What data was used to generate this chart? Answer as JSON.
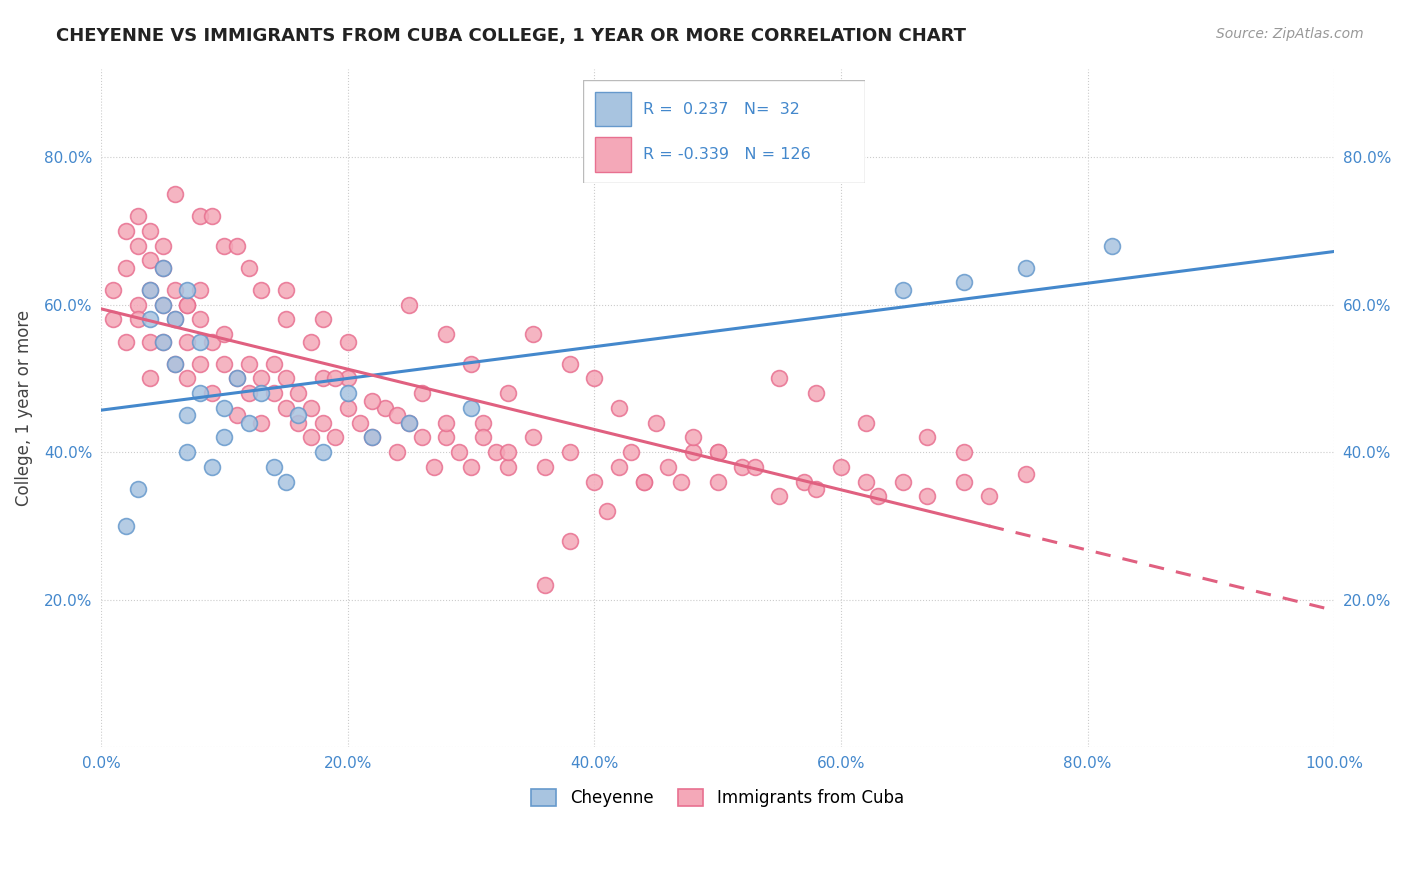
{
  "title": "CHEYENNE VS IMMIGRANTS FROM CUBA COLLEGE, 1 YEAR OR MORE CORRELATION CHART",
  "source": "Source: ZipAtlas.com",
  "ylabel": "College, 1 year or more",
  "xlim": [
    0.0,
    1.0
  ],
  "ylim": [
    0.0,
    0.92
  ],
  "yticks": [
    0.0,
    0.2,
    0.4,
    0.6,
    0.8
  ],
  "ytick_labels": [
    "",
    "20.0%",
    "40.0%",
    "60.0%",
    "80.0%"
  ],
  "xticks": [
    0.0,
    0.2,
    0.4,
    0.6,
    0.8,
    1.0
  ],
  "xtick_labels": [
    "0.0%",
    "20.0%",
    "40.0%",
    "60.0%",
    "80.0%",
    "100.0%"
  ],
  "cheyenne_color": "#a8c4e0",
  "cuba_color": "#f4a8b8",
  "cheyenne_edge": "#6699cc",
  "cuba_edge": "#e87090",
  "line_blue": "#4488cc",
  "line_pink": "#e06080",
  "R_cheyenne": 0.237,
  "N_cheyenne": 32,
  "R_cuba": -0.339,
  "N_cuba": 126,
  "legend_entries": [
    "Cheyenne",
    "Immigrants from Cuba"
  ],
  "background_color": "#ffffff",
  "grid_color": "#cccccc",
  "cheyenne_x": [
    0.02,
    0.03,
    0.04,
    0.04,
    0.05,
    0.05,
    0.05,
    0.06,
    0.06,
    0.07,
    0.07,
    0.07,
    0.08,
    0.08,
    0.09,
    0.1,
    0.1,
    0.11,
    0.12,
    0.13,
    0.14,
    0.15,
    0.16,
    0.18,
    0.2,
    0.22,
    0.25,
    0.3,
    0.65,
    0.7,
    0.75,
    0.82
  ],
  "cheyenne_y": [
    0.3,
    0.35,
    0.58,
    0.62,
    0.55,
    0.6,
    0.65,
    0.52,
    0.58,
    0.4,
    0.45,
    0.62,
    0.48,
    0.55,
    0.38,
    0.42,
    0.46,
    0.5,
    0.44,
    0.48,
    0.38,
    0.36,
    0.45,
    0.4,
    0.48,
    0.42,
    0.44,
    0.46,
    0.62,
    0.63,
    0.65,
    0.68
  ],
  "cuba_x": [
    0.01,
    0.01,
    0.02,
    0.02,
    0.02,
    0.03,
    0.03,
    0.03,
    0.03,
    0.04,
    0.04,
    0.04,
    0.04,
    0.05,
    0.05,
    0.05,
    0.06,
    0.06,
    0.06,
    0.07,
    0.07,
    0.07,
    0.08,
    0.08,
    0.08,
    0.09,
    0.09,
    0.1,
    0.1,
    0.11,
    0.11,
    0.12,
    0.12,
    0.13,
    0.13,
    0.14,
    0.14,
    0.15,
    0.15,
    0.16,
    0.16,
    0.17,
    0.17,
    0.18,
    0.18,
    0.19,
    0.2,
    0.2,
    0.21,
    0.22,
    0.23,
    0.24,
    0.25,
    0.26,
    0.27,
    0.28,
    0.29,
    0.3,
    0.31,
    0.32,
    0.33,
    0.35,
    0.36,
    0.38,
    0.4,
    0.42,
    0.43,
    0.44,
    0.46,
    0.47,
    0.48,
    0.5,
    0.52,
    0.55,
    0.57,
    0.58,
    0.6,
    0.62,
    0.63,
    0.65,
    0.67,
    0.7,
    0.72,
    0.75,
    0.55,
    0.58,
    0.62,
    0.67,
    0.7,
    0.35,
    0.38,
    0.4,
    0.42,
    0.45,
    0.48,
    0.5,
    0.53,
    0.25,
    0.28,
    0.3,
    0.33,
    0.12,
    0.15,
    0.18,
    0.2,
    0.08,
    0.1,
    0.06,
    0.04,
    0.05,
    0.07,
    0.09,
    0.11,
    0.13,
    0.15,
    0.17,
    0.19,
    0.22,
    0.24,
    0.26,
    0.28,
    0.31,
    0.33,
    0.36,
    0.38,
    0.41,
    0.44,
    0.5
  ],
  "cuba_y": [
    0.58,
    0.62,
    0.55,
    0.65,
    0.7,
    0.72,
    0.68,
    0.6,
    0.58,
    0.66,
    0.62,
    0.55,
    0.5,
    0.6,
    0.55,
    0.68,
    0.58,
    0.52,
    0.62,
    0.55,
    0.6,
    0.5,
    0.58,
    0.52,
    0.62,
    0.55,
    0.48,
    0.52,
    0.56,
    0.5,
    0.45,
    0.52,
    0.48,
    0.5,
    0.44,
    0.48,
    0.52,
    0.46,
    0.5,
    0.44,
    0.48,
    0.42,
    0.46,
    0.44,
    0.5,
    0.42,
    0.46,
    0.5,
    0.44,
    0.42,
    0.46,
    0.4,
    0.44,
    0.42,
    0.38,
    0.42,
    0.4,
    0.38,
    0.44,
    0.4,
    0.38,
    0.42,
    0.38,
    0.4,
    0.36,
    0.38,
    0.4,
    0.36,
    0.38,
    0.36,
    0.4,
    0.36,
    0.38,
    0.34,
    0.36,
    0.35,
    0.38,
    0.36,
    0.34,
    0.36,
    0.34,
    0.36,
    0.34,
    0.37,
    0.5,
    0.48,
    0.44,
    0.42,
    0.4,
    0.56,
    0.52,
    0.5,
    0.46,
    0.44,
    0.42,
    0.4,
    0.38,
    0.6,
    0.56,
    0.52,
    0.48,
    0.65,
    0.62,
    0.58,
    0.55,
    0.72,
    0.68,
    0.75,
    0.7,
    0.65,
    0.6,
    0.72,
    0.68,
    0.62,
    0.58,
    0.55,
    0.5,
    0.47,
    0.45,
    0.48,
    0.44,
    0.42,
    0.4,
    0.22,
    0.28,
    0.32,
    0.36,
    0.4
  ]
}
